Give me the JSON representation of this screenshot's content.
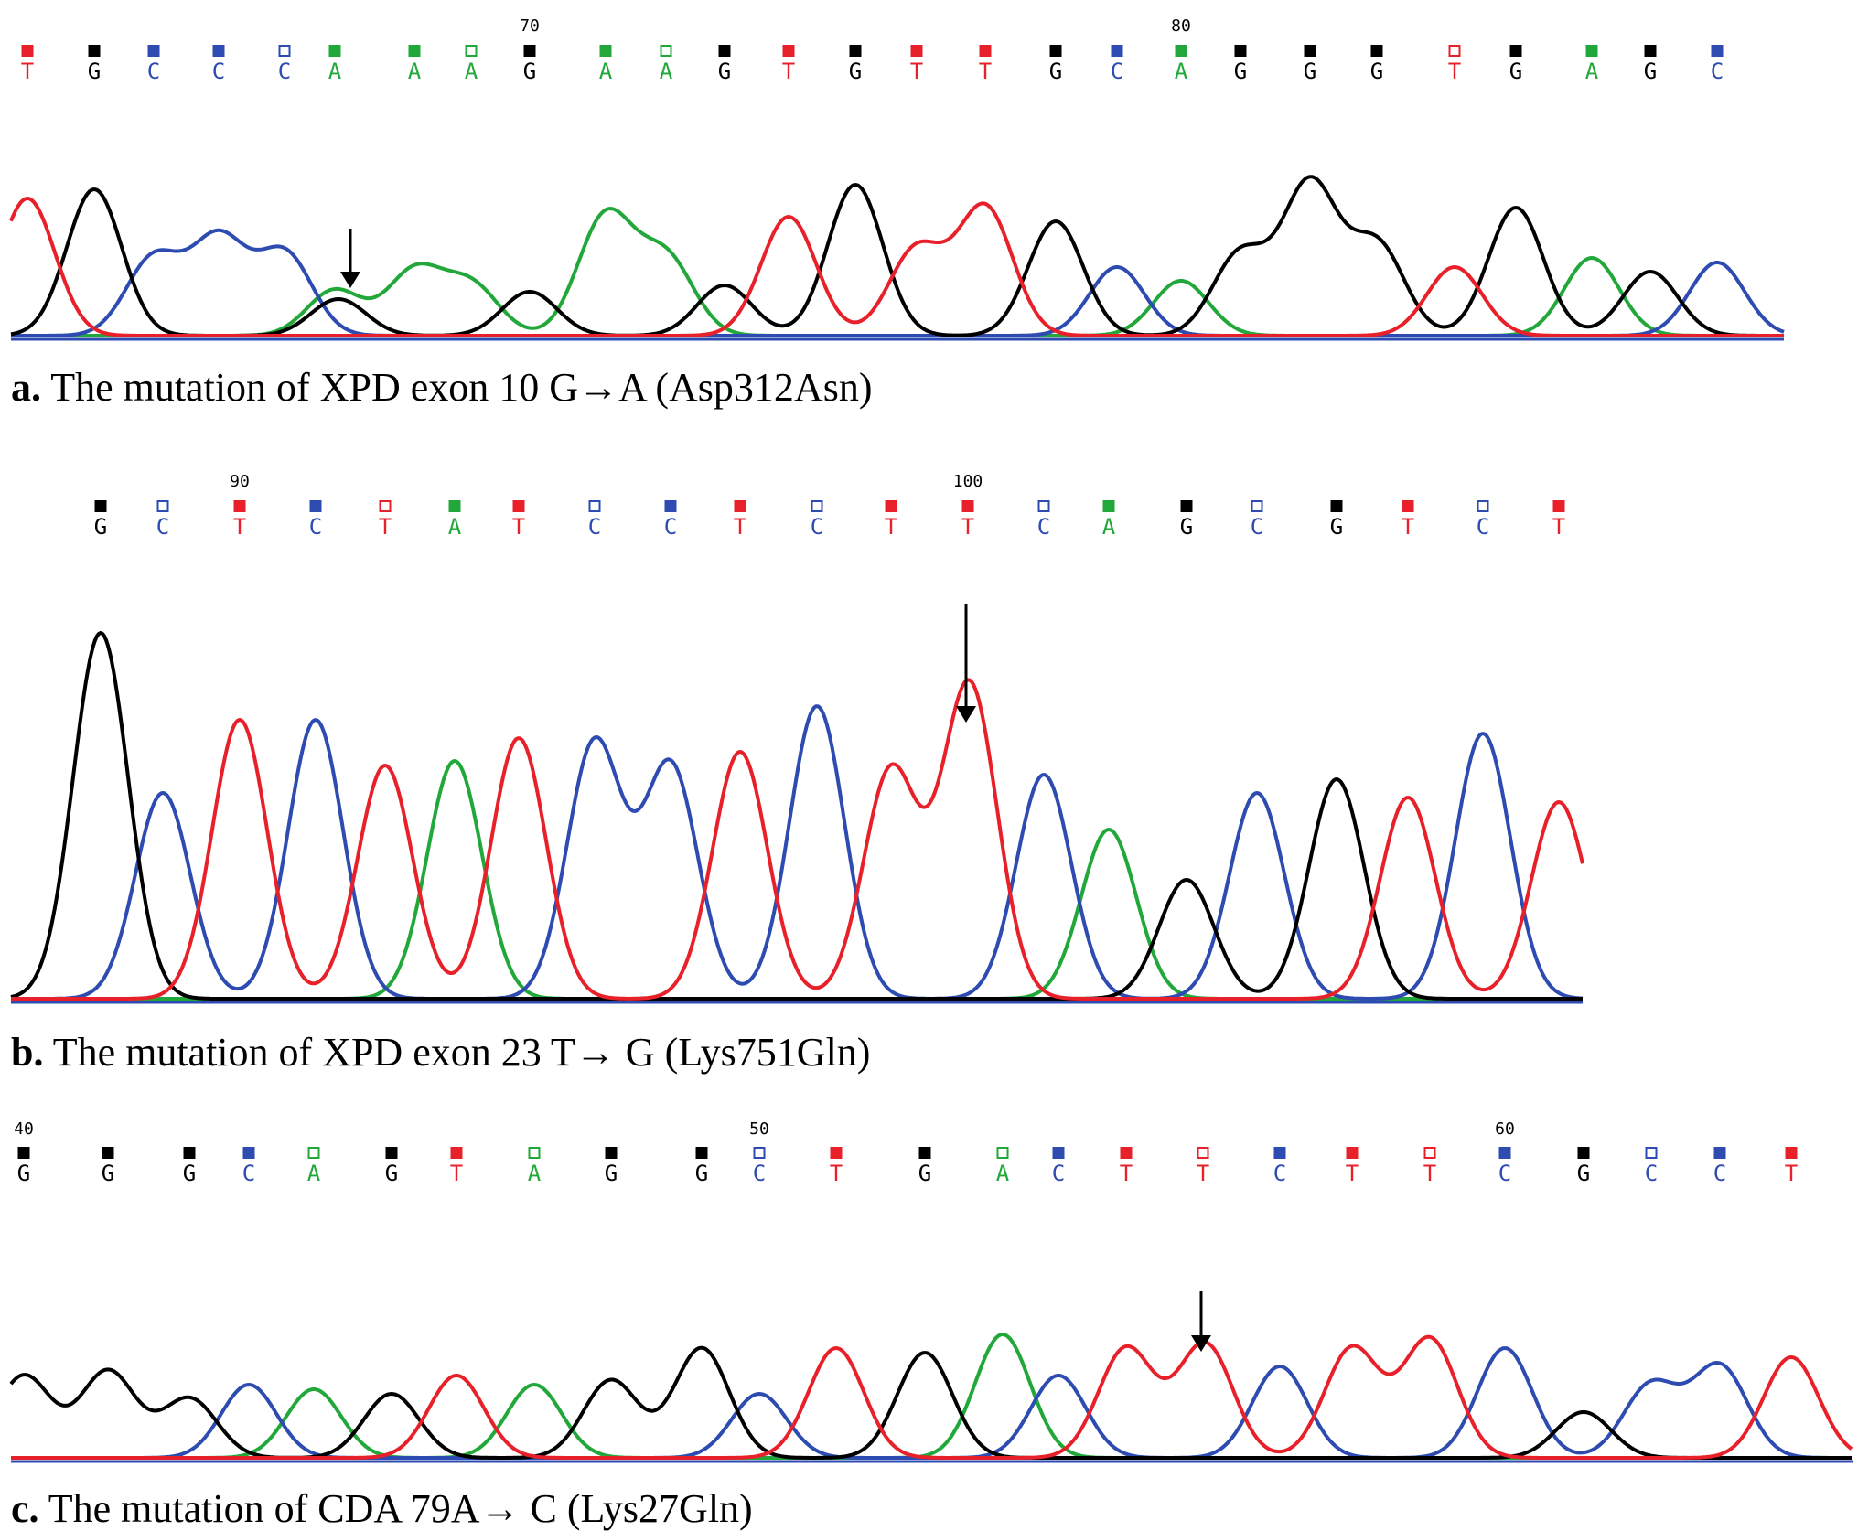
{
  "colors": {
    "A": "#22a83a",
    "C": "#2d4bb0",
    "G": "#000000",
    "T": "#e8202a"
  },
  "panels": [
    {
      "id": "a",
      "bases": [
        "T",
        "G",
        "C",
        "C",
        "C",
        "A",
        "A",
        "A",
        "G",
        "A",
        "A",
        "G",
        "T",
        "G",
        "T",
        "T",
        "G",
        "C",
        "A",
        "G",
        "G",
        "G",
        "T",
        "G",
        "A",
        "G",
        "C"
      ],
      "position_labels": [
        {
          "text": "70",
          "base_index": 8
        },
        {
          "text": "80",
          "base_index": 18
        }
      ],
      "mutation_base_index": 5,
      "caption_letter": "a.",
      "caption_text": " The mutation of XPD exon 10 G→A (Asp312Asn)"
    },
    {
      "id": "b",
      "bases": [
        "G",
        "C",
        "T",
        "C",
        "T",
        "A",
        "T",
        "C",
        "C",
        "T",
        "C",
        "T",
        "T",
        "C",
        "A",
        "G",
        "C",
        "G",
        "T",
        "C",
        "T"
      ],
      "position_labels": [
        {
          "text": "90",
          "base_index": 2
        },
        {
          "text": "100",
          "base_index": 12
        }
      ],
      "mutation_base_index": 12,
      "caption_letter": "b.",
      "caption_text": " The mutation of XPD exon 23 T→ G (Lys751Gln)"
    },
    {
      "id": "c",
      "bases": [
        "G",
        "G",
        "G",
        "C",
        "A",
        "G",
        "T",
        "A",
        "G",
        "G",
        "C",
        "T",
        "G",
        "A",
        "C",
        "T",
        "T",
        "C",
        "T",
        "T",
        "C",
        "G",
        "C",
        "C",
        "T"
      ],
      "position_labels": [
        {
          "text": "40",
          "base_index": 0
        },
        {
          "text": "50",
          "base_index": 10
        },
        {
          "text": "60",
          "base_index": 20
        }
      ],
      "mutation_base_index": 16,
      "caption_letter": "c.",
      "caption_text": " The mutation of CDA 79A→ C (Lys27Gln)"
    }
  ]
}
